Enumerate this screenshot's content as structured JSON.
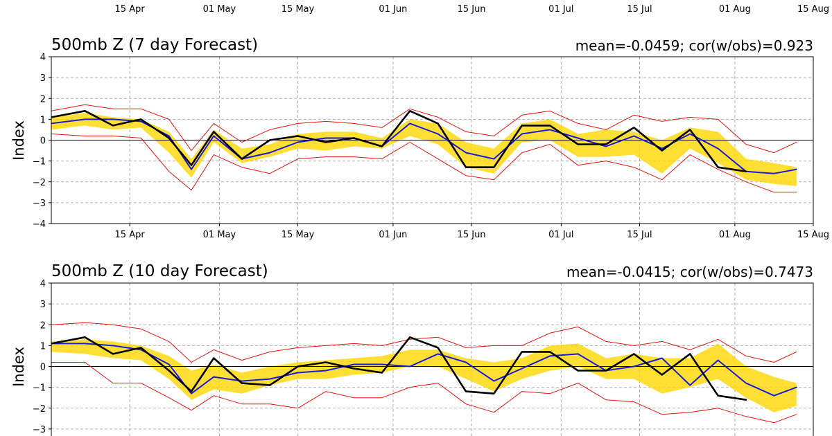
{
  "date_ticks": [
    "15 Apr",
    "01 May",
    "15 May",
    "01 Jun",
    "15 Jun",
    "01 Jul",
    "15 Jul",
    "01 Aug",
    "15 Aug"
  ],
  "colors": {
    "band": "#ffd700",
    "mean_line": "#1a1adb",
    "observed_line": "#000000",
    "envelope": "#e8130f",
    "grid": "#b0b0b0"
  },
  "chart_data": [
    {
      "type": "line",
      "title": "500mb Z (7 day Forecast)",
      "stats": "mean=-0.0459; cor(w/obs)=0.923",
      "ylabel": "Index",
      "ylim": [
        -4,
        4
      ],
      "yticks": [
        -4,
        -3,
        -2,
        -1,
        0,
        1,
        2,
        3,
        4
      ],
      "xlim": [
        "2019-04-01",
        "2019-08-15"
      ],
      "grid": true,
      "x": [
        "2019-04-01",
        "2019-04-07",
        "2019-04-12",
        "2019-04-17",
        "2019-04-22",
        "2019-04-26",
        "2019-04-30",
        "2019-05-05",
        "2019-05-10",
        "2019-05-15",
        "2019-05-20",
        "2019-05-25",
        "2019-05-30",
        "2019-06-04",
        "2019-06-09",
        "2019-06-14",
        "2019-06-19",
        "2019-06-24",
        "2019-06-29",
        "2019-07-04",
        "2019-07-09",
        "2019-07-14",
        "2019-07-19",
        "2019-07-24",
        "2019-07-29",
        "2019-08-03",
        "2019-08-08",
        "2019-08-12"
      ],
      "series": [
        {
          "role": "upper",
          "values": [
            1.4,
            1.7,
            1.5,
            1.5,
            1.0,
            -0.5,
            0.8,
            -0.1,
            0.5,
            0.8,
            0.9,
            0.8,
            0.6,
            1.5,
            1.1,
            0.4,
            0.2,
            1.2,
            1.4,
            0.8,
            0.5,
            1.2,
            0.9,
            1.1,
            1.0,
            -0.2,
            -0.6,
            -0.1
          ]
        },
        {
          "role": "band_hi",
          "values": [
            1.1,
            1.3,
            1.1,
            1.0,
            0.4,
            -0.9,
            0.5,
            -0.4,
            -0.2,
            0.3,
            0.4,
            0.4,
            0.1,
            1.0,
            0.8,
            -0.1,
            -0.4,
            0.8,
            1.0,
            0.3,
            0.5,
            0.4,
            0.0,
            0.6,
            0.4,
            -0.9,
            -1.1,
            -1.3
          ]
        },
        {
          "role": "band_lo",
          "values": [
            0.5,
            0.7,
            0.5,
            0.6,
            -0.6,
            -1.8,
            -0.1,
            -1.1,
            -0.8,
            -0.4,
            -0.5,
            -0.3,
            -0.4,
            0.2,
            -0.2,
            -1.3,
            -1.6,
            -0.1,
            0.0,
            -0.8,
            -0.8,
            -0.7,
            -1.6,
            -0.4,
            -1.1,
            -1.9,
            -2.1,
            -2.2
          ]
        },
        {
          "role": "lower",
          "values": [
            0.3,
            0.2,
            0.2,
            0.1,
            -1.5,
            -2.4,
            -0.7,
            -1.3,
            -1.6,
            -0.9,
            -0.8,
            -0.8,
            -0.9,
            -0.1,
            -0.9,
            -1.7,
            -1.9,
            -0.6,
            -0.2,
            -1.2,
            -1.0,
            -1.3,
            -1.9,
            -0.7,
            -1.4,
            -2.0,
            -2.5,
            -2.5
          ]
        },
        {
          "role": "mean",
          "values": [
            0.8,
            1.0,
            1.0,
            0.9,
            0.2,
            -1.4,
            0.2,
            -0.9,
            -0.6,
            -0.1,
            0.1,
            0.1,
            -0.3,
            0.8,
            0.3,
            -0.6,
            -0.9,
            0.3,
            0.5,
            0.1,
            -0.3,
            0.2,
            -0.4,
            0.3,
            -0.4,
            -1.5,
            -1.6,
            -1.4
          ]
        },
        {
          "role": "observed",
          "values": [
            1.1,
            1.4,
            0.7,
            1.0,
            0.1,
            -1.2,
            0.4,
            -0.9,
            0.0,
            0.2,
            -0.1,
            0.1,
            -0.3,
            1.4,
            0.8,
            -1.3,
            -1.3,
            0.7,
            0.7,
            -0.2,
            -0.2,
            0.6,
            -0.5,
            0.5,
            -1.3,
            -1.5,
            null,
            null
          ]
        }
      ]
    },
    {
      "type": "line",
      "title": "500mb Z (10 day Forecast)",
      "stats": "mean=-0.0415; cor(w/obs)=0.7473",
      "ylabel": "Index",
      "ylim": [
        -4,
        4
      ],
      "yticks": [
        -3,
        -2,
        -1,
        0,
        1,
        2,
        3,
        4
      ],
      "xlim": [
        "2019-04-01",
        "2019-08-15"
      ],
      "grid": true,
      "x": [
        "2019-04-01",
        "2019-04-07",
        "2019-04-12",
        "2019-04-17",
        "2019-04-22",
        "2019-04-26",
        "2019-04-30",
        "2019-05-05",
        "2019-05-10",
        "2019-05-15",
        "2019-05-20",
        "2019-05-25",
        "2019-05-30",
        "2019-06-04",
        "2019-06-09",
        "2019-06-14",
        "2019-06-19",
        "2019-06-24",
        "2019-06-29",
        "2019-07-04",
        "2019-07-09",
        "2019-07-14",
        "2019-07-19",
        "2019-07-24",
        "2019-07-29",
        "2019-08-03",
        "2019-08-08",
        "2019-08-12"
      ],
      "series": [
        {
          "role": "upper",
          "values": [
            2.0,
            2.1,
            2.0,
            1.8,
            1.2,
            0.2,
            0.8,
            0.3,
            0.7,
            0.9,
            1.0,
            1.1,
            1.0,
            1.3,
            1.4,
            0.9,
            1.0,
            1.0,
            1.6,
            1.9,
            1.2,
            1.0,
            1.2,
            0.8,
            1.3,
            0.5,
            0.2,
            0.7
          ]
        },
        {
          "role": "band_hi",
          "values": [
            1.2,
            1.3,
            1.2,
            1.0,
            0.5,
            -0.2,
            0.1,
            -0.3,
            0.0,
            0.2,
            0.3,
            0.4,
            0.5,
            0.8,
            0.8,
            0.4,
            0.2,
            0.4,
            1.0,
            1.1,
            0.4,
            0.6,
            0.4,
            0.4,
            1.1,
            0.0,
            -0.5,
            -0.8
          ]
        },
        {
          "role": "band_lo",
          "values": [
            0.7,
            0.6,
            0.4,
            0.3,
            -0.6,
            -1.6,
            -1.1,
            -1.3,
            -0.9,
            -0.6,
            -0.6,
            -0.4,
            -0.3,
            0.0,
            0.0,
            -0.6,
            -1.2,
            -0.6,
            -0.2,
            0.0,
            -0.6,
            -0.6,
            -1.3,
            -1.0,
            -0.6,
            -1.5,
            -2.2,
            -1.9
          ]
        },
        {
          "role": "lower",
          "values": [
            0.2,
            0.2,
            -0.8,
            -0.8,
            -1.5,
            -2.1,
            -1.4,
            -1.8,
            -1.8,
            -2.0,
            -1.2,
            -1.5,
            -1.5,
            -1.0,
            -0.8,
            -1.8,
            -2.2,
            -1.2,
            -1.3,
            -0.8,
            -1.6,
            -1.7,
            -2.3,
            -2.2,
            -2.0,
            -2.4,
            -2.7,
            -2.3
          ]
        },
        {
          "role": "mean",
          "values": [
            1.1,
            1.1,
            1.0,
            0.8,
            0.1,
            -1.3,
            -0.5,
            -0.7,
            -0.6,
            -0.3,
            -0.2,
            0.1,
            0.1,
            0.0,
            0.6,
            0.2,
            -0.7,
            -0.1,
            0.5,
            0.6,
            -0.2,
            0.0,
            0.4,
            -0.9,
            0.3,
            -0.8,
            -1.4,
            -1.0
          ]
        },
        {
          "role": "observed",
          "values": [
            1.1,
            1.4,
            0.6,
            0.9,
            -0.2,
            -1.2,
            0.4,
            -0.8,
            -0.9,
            0.0,
            0.2,
            -0.1,
            -0.3,
            1.4,
            0.9,
            -1.2,
            -1.3,
            0.7,
            0.7,
            -0.2,
            -0.2,
            0.6,
            -0.4,
            0.6,
            -1.4,
            -1.6,
            null,
            null
          ]
        }
      ]
    }
  ]
}
